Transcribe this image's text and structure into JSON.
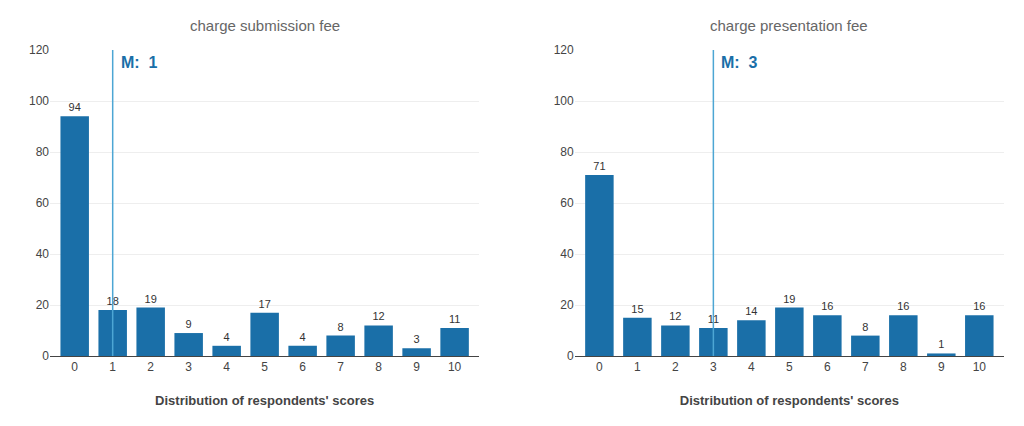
{
  "chart_data": [
    {
      "type": "bar",
      "title": "charge submission fee",
      "x": [
        0,
        1,
        2,
        3,
        4,
        5,
        6,
        7,
        8,
        9,
        10
      ],
      "values": [
        94,
        18,
        19,
        9,
        4,
        17,
        4,
        8,
        12,
        3,
        11
      ],
      "color": "#1a6fa8",
      "xlabel": "Distribution of respondents' scores",
      "xlim": [
        -0.65,
        10.65
      ],
      "xticks": [
        0,
        1,
        2,
        3,
        4,
        5,
        6,
        7,
        8,
        9,
        10
      ],
      "ylim": [
        0,
        120
      ],
      "yticks": [
        0,
        20,
        40,
        60,
        80,
        100,
        120
      ],
      "grid": "y",
      "data_labels": true,
      "median": {
        "value": 1,
        "label": "M:  1",
        "color": "#4da6d4",
        "label_color": "#1a6fa8"
      }
    },
    {
      "type": "bar",
      "title": "charge presentation fee",
      "x": [
        0,
        1,
        2,
        3,
        4,
        5,
        6,
        7,
        8,
        9,
        10
      ],
      "values": [
        71,
        15,
        12,
        11,
        14,
        19,
        16,
        8,
        16,
        1,
        16
      ],
      "color": "#1a6fa8",
      "xlabel": "Distribution of respondents' scores",
      "xlim": [
        -0.65,
        10.65
      ],
      "xticks": [
        0,
        1,
        2,
        3,
        4,
        5,
        6,
        7,
        8,
        9,
        10
      ],
      "ylim": [
        0,
        120
      ],
      "yticks": [
        0,
        20,
        40,
        60,
        80,
        100,
        120
      ],
      "grid": "y",
      "data_labels": true,
      "median": {
        "value": 3,
        "label": "M:  3",
        "color": "#4da6d4",
        "label_color": "#1a6fa8"
      }
    }
  ]
}
